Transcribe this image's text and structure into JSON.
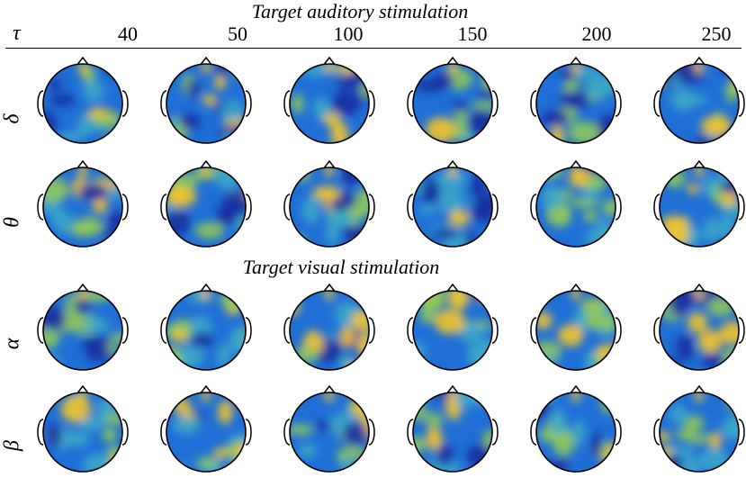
{
  "titles": {
    "auditory": "Target auditory stimulation",
    "visual": "Target visual stimulation"
  },
  "tau_label": "τ",
  "columns": [
    "40",
    "50",
    "100",
    "150",
    "200",
    "250"
  ],
  "bands": [
    "δ",
    "θ",
    "α",
    "β"
  ],
  "colors": {
    "low": "#1a2fa0",
    "mid_low": "#1f6fd6",
    "mid": "#3aa7c9",
    "mid_high": "#8fc95a",
    "high": "#f5c52a",
    "outline": "#000000"
  },
  "topomaps": [
    {
      "band": "δ",
      "tau": "40",
      "level": 0.35
    },
    {
      "band": "δ",
      "tau": "50",
      "level": 0.4
    },
    {
      "band": "δ",
      "tau": "100",
      "level": 0.4
    },
    {
      "band": "δ",
      "tau": "150",
      "level": 0.42
    },
    {
      "band": "δ",
      "tau": "200",
      "level": 0.42
    },
    {
      "band": "δ",
      "tau": "250",
      "level": 0.42
    },
    {
      "band": "θ",
      "tau": "40",
      "level": 0.4
    },
    {
      "band": "θ",
      "tau": "50",
      "level": 0.5
    },
    {
      "band": "θ",
      "tau": "100",
      "level": 0.52
    },
    {
      "band": "θ",
      "tau": "150",
      "level": 0.5
    },
    {
      "band": "θ",
      "tau": "200",
      "level": 0.55
    },
    {
      "band": "θ",
      "tau": "250",
      "level": 0.65
    },
    {
      "band": "α",
      "tau": "40",
      "level": 0.32
    },
    {
      "band": "α",
      "tau": "50",
      "level": 0.5
    },
    {
      "band": "α",
      "tau": "100",
      "level": 0.55
    },
    {
      "band": "α",
      "tau": "150",
      "level": 0.52
    },
    {
      "band": "α",
      "tau": "200",
      "level": 0.6
    },
    {
      "band": "α",
      "tau": "250",
      "level": 0.62
    },
    {
      "band": "β",
      "tau": "40",
      "level": 0.48
    },
    {
      "band": "β",
      "tau": "50",
      "level": 0.45
    },
    {
      "band": "β",
      "tau": "100",
      "level": 0.48
    },
    {
      "band": "β",
      "tau": "150",
      "level": 0.5
    },
    {
      "band": "β",
      "tau": "200",
      "level": 0.55
    },
    {
      "band": "β",
      "tau": "250",
      "level": 0.58
    }
  ]
}
